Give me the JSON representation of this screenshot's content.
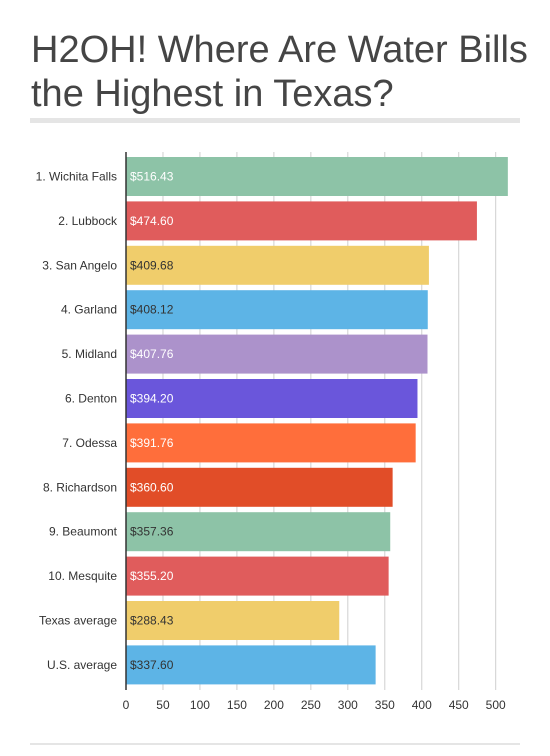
{
  "title": "H2OH! Where Are Water Bills the Highest in Texas?",
  "chart_data": {
    "type": "bar",
    "orientation": "horizontal",
    "title": "H2OH! Where Are Water Bills the Highest in Texas?",
    "xlabel": "",
    "ylabel": "",
    "xlim": [
      0,
      530
    ],
    "ticks": [
      0,
      50,
      100,
      150,
      200,
      250,
      300,
      350,
      400,
      450,
      500
    ],
    "grid": true,
    "categories": [
      "1. Wichita Falls",
      "2. Lubbock",
      "3. San Angelo",
      "4. Garland",
      "5. Midland",
      "6. Denton",
      "7. Odessa",
      "8. Richardson",
      "9. Beaumont",
      "10. Mesquite",
      "Texas average",
      "U.S. average"
    ],
    "values": [
      516.43,
      474.6,
      409.68,
      408.12,
      407.76,
      394.2,
      391.76,
      360.6,
      357.36,
      355.2,
      288.43,
      337.6
    ],
    "labels": [
      "$516.43",
      "$474.60",
      "$409.68",
      "$408.12",
      "$407.76",
      "$394.20",
      "$391.76",
      "$360.60",
      "$357.36",
      "$355.20",
      "$288.43",
      "$337.60"
    ],
    "colors": [
      "#8dc3a7",
      "#e05c5c",
      "#f0cd6b",
      "#5db4e6",
      "#ac92cb",
      "#6a56db",
      "#ff6e3b",
      "#e14d28",
      "#8dc3a7",
      "#e05c5c",
      "#f0cd6b",
      "#5db4e6"
    ],
    "label_colors": [
      "#ffffff",
      "#ffffff",
      "#333333",
      "#333333",
      "#ffffff",
      "#ffffff",
      "#ffffff",
      "#ffffff",
      "#333333",
      "#ffffff",
      "#333333",
      "#333333"
    ]
  }
}
